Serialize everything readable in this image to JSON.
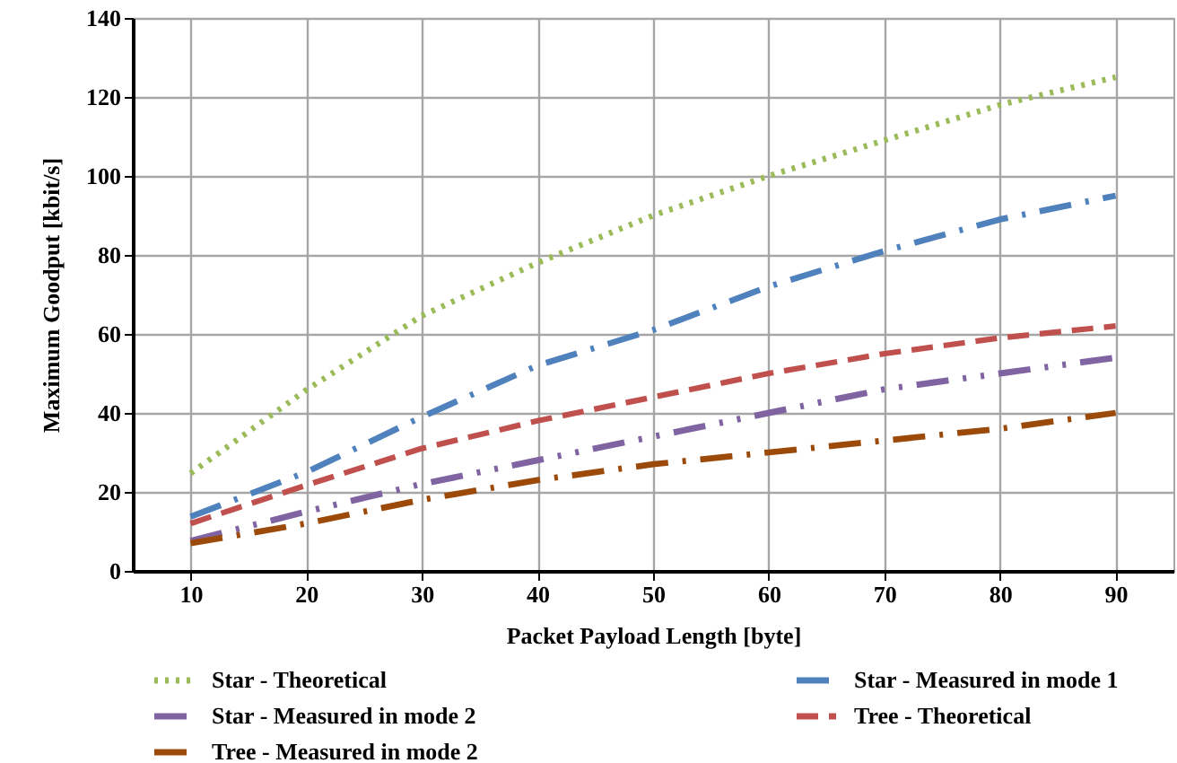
{
  "chart_data": {
    "type": "line",
    "xlabel": "Packet Payload Length [byte]",
    "ylabel": "Maximum Goodput [kbit/s]",
    "x": [
      10,
      20,
      30,
      40,
      50,
      60,
      70,
      80,
      90
    ],
    "xlim": [
      5,
      95
    ],
    "xticks": [
      10,
      20,
      30,
      40,
      50,
      60,
      70,
      80,
      90
    ],
    "ylim": [
      0,
      140
    ],
    "yticks": [
      0,
      20,
      40,
      60,
      80,
      100,
      120,
      140
    ],
    "grid": true,
    "legend": "bottom",
    "marker": "none",
    "series": [
      {
        "name": "Star - Theoretical",
        "color": "#9bbb59",
        "line_style": "dotted",
        "values": [
          24.7,
          45.8,
          64.6,
          78,
          90,
          100,
          109,
          118,
          125
        ]
      },
      {
        "name": "Star - Measured in mode 1",
        "color": "#4f81bd",
        "line_style": "dashdot",
        "values": [
          13.7,
          25,
          39,
          52,
          61,
          72,
          81,
          89,
          95
        ]
      },
      {
        "name": "Star - Measured in mode 2",
        "color": "#8064a2",
        "line_style": "dashdotdot",
        "values": [
          7.6,
          15,
          22,
          28,
          34,
          40,
          46,
          50,
          54
        ]
      },
      {
        "name": "Tree - Theoretical",
        "color": "#c0504d",
        "line_style": "dashed",
        "values": [
          12,
          21.7,
          31,
          38,
          44,
          50,
          55,
          59,
          62
        ]
      },
      {
        "name": "Tree - Measured in mode 2",
        "color": "#9c4a0a",
        "line_style": "dashdot",
        "values": [
          7,
          12,
          18,
          23,
          27,
          30,
          33,
          36,
          40
        ]
      }
    ]
  }
}
